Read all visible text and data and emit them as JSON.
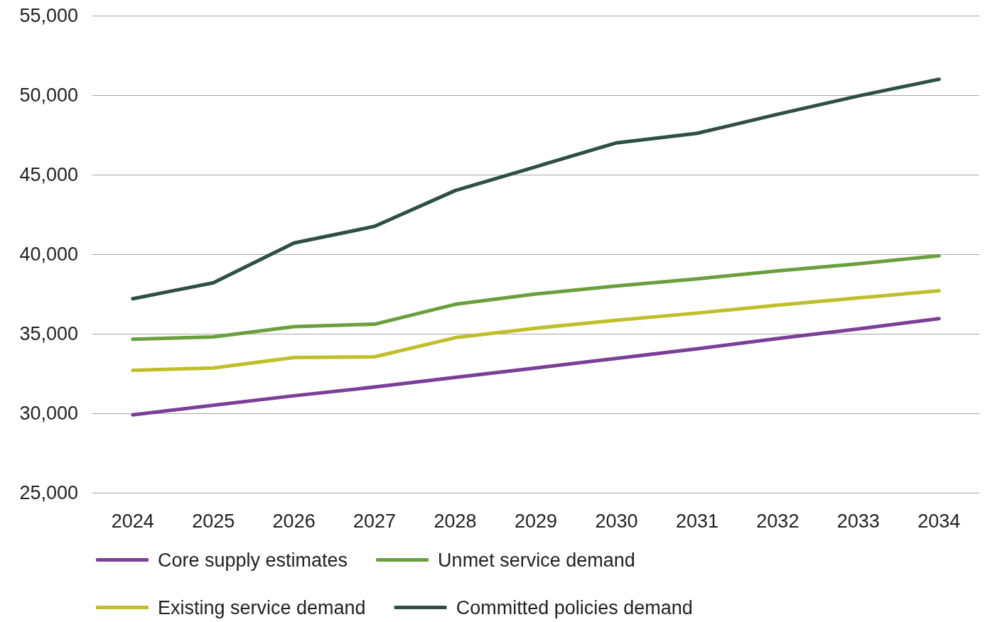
{
  "chart_data": {
    "type": "line",
    "categories": [
      "2024",
      "2025",
      "2026",
      "2027",
      "2028",
      "2029",
      "2030",
      "2031",
      "2032",
      "2033",
      "2034"
    ],
    "series": [
      {
        "name": "Core supply estimates",
        "color": "#7b3f98",
        "values": [
          29900,
          30500,
          31100,
          31650,
          32250,
          32850,
          33450,
          34050,
          34700,
          35300,
          35950
        ]
      },
      {
        "name": "Unmet service demand",
        "color": "#6a9f3e",
        "values": [
          34650,
          34800,
          35450,
          35600,
          36850,
          37500,
          38000,
          38450,
          38950,
          39400,
          39900
        ]
      },
      {
        "name": "Existing service demand",
        "color": "#bfbf2a",
        "values": [
          32700,
          32850,
          33500,
          33550,
          34750,
          35350,
          35850,
          36300,
          36800,
          37250,
          37700
        ]
      },
      {
        "name": "Committed policies demand",
        "color": "#2e5040",
        "values": [
          37200,
          38200,
          40700,
          41750,
          44000,
          45500,
          47000,
          47600,
          48800,
          49950,
          51000
        ]
      }
    ],
    "ylim": [
      25000,
      55000
    ],
    "yticks": [
      {
        "value": 25000,
        "label": "25,000"
      },
      {
        "value": 30000,
        "label": "30,000"
      },
      {
        "value": 35000,
        "label": "35,000"
      },
      {
        "value": 40000,
        "label": "40,000"
      },
      {
        "value": 45000,
        "label": "45,000"
      },
      {
        "value": 50000,
        "label": "50,000"
      },
      {
        "value": 55000,
        "label": "55,000"
      }
    ],
    "grid": "y",
    "legend": "bottom",
    "marker": "none",
    "line_style": "solid"
  }
}
